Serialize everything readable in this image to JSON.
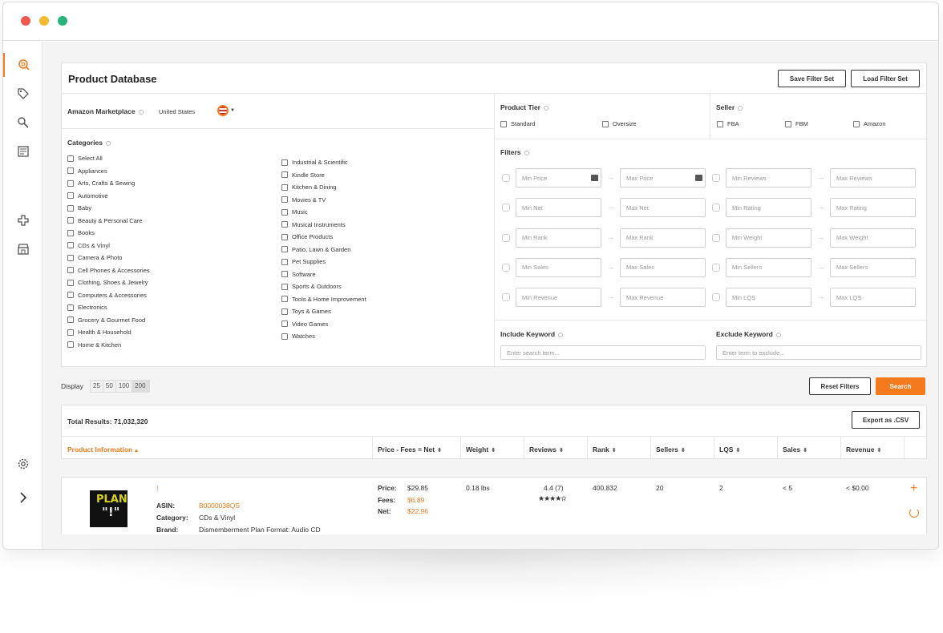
{
  "window": {
    "title": "Product Database"
  },
  "header": {
    "save_filter_label": "Save Filter Set",
    "load_filter_label": "Load Filter Set"
  },
  "marketplace": {
    "label": "Amazon Marketplace",
    "value": "United States"
  },
  "categories": {
    "label": "Categories",
    "left": [
      "Select All",
      "Appliances",
      "Arts, Crafts & Sewing",
      "Automotive",
      "Baby",
      "Beauty & Personal Care",
      "Books",
      "CDs & Vinyl",
      "Camera & Photo",
      "Cell Phones & Accessories",
      "Clothing, Shoes & Jewelry",
      "Computers & Accessories",
      "Electronics",
      "Grocery & Gourmet Food",
      "Health & Household",
      "Home & Kitchen"
    ],
    "right": [
      "Industrial & Scientific",
      "Kindle Store",
      "Kitchen & Dining",
      "Movies & TV",
      "Music",
      "Musical Instruments",
      "Office Products",
      "Patio, Lawn & Garden",
      "Pet Supplies",
      "Software",
      "Sports & Outdoors",
      "Tools & Home Improvement",
      "Toys & Games",
      "Video Games",
      "Watches"
    ]
  },
  "tier": {
    "label": "Product Tier",
    "options": [
      "Standard",
      "Oversize"
    ]
  },
  "seller": {
    "label": "Seller",
    "options": [
      "FBA",
      "FBM",
      "Amazon"
    ]
  },
  "filters": {
    "label": "Filters",
    "left": [
      [
        "Min Price",
        "Max Price"
      ],
      [
        "Min Net",
        "Max Net"
      ],
      [
        "Min Rank",
        "Max Rank"
      ],
      [
        "Min Sales",
        "Max Sales"
      ],
      [
        "Min Revenue",
        "Max Revenue"
      ]
    ],
    "right": [
      [
        "Min Reviews",
        "Max Reviews"
      ],
      [
        "Min Rating",
        "Max Rating"
      ],
      [
        "Min Weight",
        "Max Weight"
      ],
      [
        "Min Sellers",
        "Max Sellers"
      ],
      [
        "Min LQS",
        "Max LQS"
      ]
    ]
  },
  "keywords": {
    "include_label": "Include Keyword",
    "include_placeholder": "Enter search term...",
    "exclude_label": "Exclude Keyword",
    "exclude_placeholder": "Enter term to exclude..."
  },
  "display": {
    "label": "Display",
    "options": [
      "25",
      "50",
      "100",
      "200"
    ],
    "selected": "200"
  },
  "actions": {
    "reset_label": "Reset Filters",
    "search_label": "Search"
  },
  "results": {
    "total_label": "Total Results:",
    "total_value": "71,032,320",
    "export_label": "Export as .CSV",
    "columns": [
      "Product Information",
      "Price - Fees = Net",
      "Weight",
      "Reviews",
      "Rank",
      "Sellers",
      "LQS",
      "Sales",
      "Revenue"
    ]
  },
  "product": {
    "title": "!",
    "asin_label": "ASIN:",
    "asin": "B0000038QS",
    "category_label": "Category:",
    "category": "CDs & Vinyl",
    "brand_label": "Brand:",
    "brand": "Dismemberment Plan Format: Audio CD",
    "price_label": "Price:",
    "price": "$29.85",
    "fees_label": "Fees:",
    "fees": "$6.89",
    "net_label": "Net:",
    "net": "$22.96",
    "weight": "0.18 lbs",
    "reviews": "4.4 (7)",
    "rating": 4.4,
    "rank": "400,832",
    "sellers": "20",
    "lqs": "2",
    "sales": "< 5",
    "revenue": "< $0.00",
    "album_art_text": [
      "PLAN",
      "\"!\""
    ]
  },
  "colors": {
    "accent": "#f37b1d",
    "text": "#333333"
  }
}
